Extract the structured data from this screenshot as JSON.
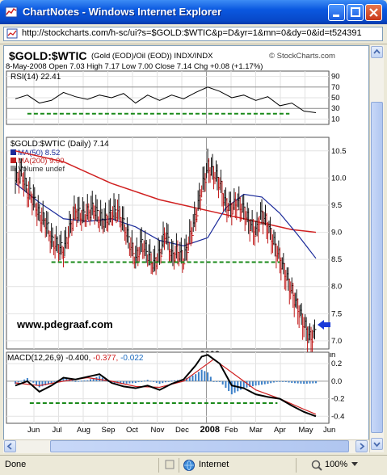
{
  "window": {
    "title": "ChartNotes - Windows Internet Explorer"
  },
  "address": {
    "url": "http://stockcharts.com/h-sc/ui?s=$GOLD:$WTIC&p=D&yr=1&mn=0&dy=0&id=t524391"
  },
  "chart": {
    "symbol_title": "$GOLD:$WTIC",
    "symbol_desc": "(Gold (EOD)/Oil (EOD))  INDX/INDX",
    "brand": "© StockCharts.com",
    "quote_line": "8-May-2008   Open 7.03  High 7.17  Low 7.00  Close 7.14  Chg +0.08 (+1.17%)",
    "rsi_label": "RSI(14) 22.41",
    "price_label": "$GOLD:$WTIC (Daily) 7.14",
    "ma50_label": "MA(50) 8.52",
    "ma200_label": "MA(200) 9.00",
    "volume_label": "Volume undef",
    "watermark": "www.pdegraaf.com",
    "macd_label_a": "MACD(12,26,9) -0.400,",
    "macd_label_b": "-0.377,",
    "macd_label_c": "-0.022",
    "year_label": "2008"
  },
  "status": {
    "done": "Done",
    "zone": "Internet",
    "zoom": "100%"
  },
  "chart_data": {
    "type": "line",
    "title": "$GOLD:$WTIC",
    "months": [
      "Jun",
      "Jul",
      "Aug",
      "Sep",
      "Oct",
      "Nov",
      "Dec",
      "2008",
      "Feb",
      "Mar",
      "Apr",
      "May",
      "Jun"
    ],
    "rsi_axis": [
      90,
      70,
      50,
      30,
      10
    ],
    "price_axis": [
      10.5,
      10.0,
      9.5,
      9.0,
      8.5,
      8.0,
      7.5,
      7.0
    ],
    "macd_axis": [
      0.2,
      0.0,
      -0.2,
      -0.4
    ],
    "price": {
      "x": [
        0,
        5,
        10,
        15,
        20,
        25,
        30,
        35,
        40,
        45,
        50,
        55,
        60,
        65,
        70,
        75,
        80,
        85,
        90,
        95,
        100,
        105,
        110,
        115,
        120,
        125,
        130,
        135,
        140,
        145,
        150,
        155,
        160,
        165,
        170,
        175,
        180,
        185,
        190,
        195,
        200,
        205,
        210,
        215,
        220,
        225,
        230,
        235,
        240,
        245,
        250
      ],
      "y": [
        9.95,
        10.1,
        9.75,
        9.6,
        9.3,
        9.2,
        8.85,
        8.75,
        8.65,
        9.05,
        9.4,
        9.3,
        9.35,
        9.45,
        9.25,
        9.2,
        9.35,
        9.4,
        9.15,
        8.8,
        8.5,
        8.8,
        8.6,
        8.4,
        8.6,
        9.0,
        8.55,
        8.65,
        8.5,
        8.9,
        9.3,
        9.8,
        10.2,
        10.1,
        9.9,
        9.5,
        9.45,
        9.55,
        9.4,
        9.15,
        9.0,
        9.35,
        9.1,
        8.8,
        8.5,
        8.2,
        7.9,
        7.6,
        7.3,
        7.05,
        7.14
      ]
    },
    "ma200": {
      "x": [
        0,
        40,
        80,
        120,
        160,
        200,
        230,
        250
      ],
      "y": [
        10.5,
        10.3,
        9.9,
        9.6,
        9.4,
        9.2,
        9.05,
        9.0
      ]
    },
    "ma50": {
      "x": [
        0,
        20,
        40,
        60,
        80,
        100,
        120,
        140,
        160,
        175,
        190,
        205,
        220,
        235,
        250
      ],
      "y": [
        9.9,
        9.55,
        9.25,
        9.2,
        9.25,
        9.1,
        8.85,
        8.75,
        8.9,
        9.45,
        9.7,
        9.65,
        9.35,
        8.95,
        8.52
      ]
    },
    "rsi": {
      "x": [
        0,
        10,
        20,
        30,
        40,
        50,
        60,
        70,
        80,
        90,
        100,
        110,
        120,
        130,
        140,
        150,
        160,
        170,
        180,
        190,
        200,
        210,
        220,
        230,
        240,
        250
      ],
      "y": [
        48,
        55,
        40,
        45,
        60,
        52,
        47,
        55,
        50,
        58,
        40,
        55,
        45,
        55,
        48,
        60,
        70,
        62,
        50,
        55,
        45,
        52,
        35,
        40,
        25,
        22
      ]
    },
    "macd": {
      "x": [
        0,
        10,
        20,
        30,
        40,
        50,
        60,
        70,
        80,
        90,
        100,
        110,
        120,
        130,
        140,
        150,
        155,
        160,
        170,
        180,
        190,
        200,
        210,
        220,
        230,
        240,
        250
      ],
      "y": [
        -0.05,
        0.0,
        -0.12,
        -0.05,
        0.04,
        0.02,
        0.05,
        0.08,
        -0.02,
        -0.06,
        -0.08,
        -0.05,
        -0.1,
        -0.03,
        0.02,
        0.18,
        0.28,
        0.3,
        0.2,
        -0.05,
        -0.08,
        -0.15,
        -0.18,
        -0.2,
        -0.28,
        -0.35,
        -0.4
      ]
    },
    "signal": {
      "x": [
        0,
        20,
        40,
        60,
        80,
        100,
        120,
        140,
        155,
        165,
        180,
        200,
        220,
        240,
        250
      ],
      "y": [
        -0.02,
        -0.05,
        0.0,
        0.04,
        0.0,
        -0.06,
        -0.07,
        0.0,
        0.15,
        0.25,
        0.1,
        -0.1,
        -0.2,
        -0.32,
        -0.377
      ]
    },
    "support_level_price": 8.45
  }
}
